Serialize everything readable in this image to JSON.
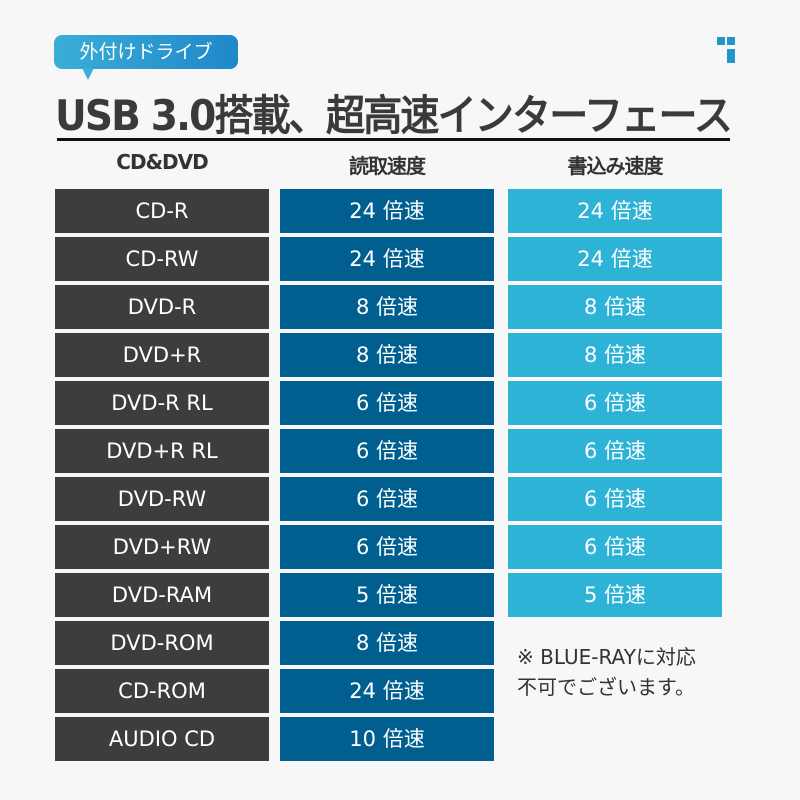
{
  "badge": "外付けドライブ",
  "title": "USB 3.0搭載、超高速インターフェース",
  "headers": [
    "CD&DVD",
    "読取速度",
    "書込み速度"
  ],
  "media": [
    "CD-R",
    "CD-RW",
    "DVD-R",
    "DVD+R",
    "DVD-R RL",
    "DVD+R RL",
    "DVD-RW",
    "DVD+RW",
    "DVD-RAM",
    "DVD-ROM",
    "CD-ROM",
    "AUDIO CD"
  ],
  "read": [
    "24 倍速",
    "24 倍速",
    "8 倍速",
    "8 倍速",
    "6 倍速",
    "6 倍速",
    "6 倍速",
    "6 倍速",
    "5 倍速",
    "8 倍速",
    "24 倍速",
    "10 倍速"
  ],
  "write": [
    "24 倍速",
    "24 倍速",
    "8 倍速",
    "8 倍速",
    "6 倍速",
    "6 倍速",
    "6 倍速",
    "6 倍速",
    "5 倍速"
  ],
  "note": [
    "※ BLUE-RAYに対応",
    "不可でございます。"
  ],
  "colors": {
    "media": "#3d3d3d",
    "read": "#005f8f",
    "write": "#2cb3d6"
  }
}
